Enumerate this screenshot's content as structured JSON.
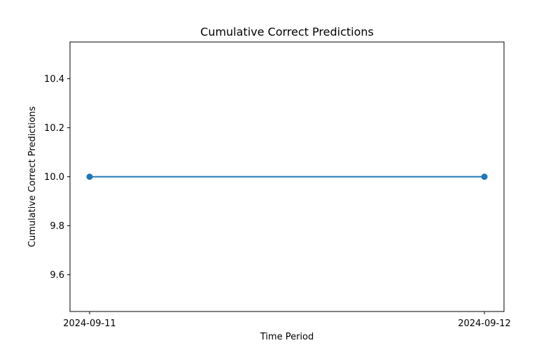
{
  "chart_data": {
    "type": "line",
    "title": "Cumulative Correct Predictions",
    "xlabel": "Time Period",
    "ylabel": "Cumulative Correct Predictions",
    "categories": [
      "2024-09-11",
      "2024-09-12"
    ],
    "series": [
      {
        "values": [
          10.0,
          10.0
        ],
        "color": "#1f77b4",
        "marker": "circle"
      }
    ],
    "ylim": [
      9.45,
      10.55
    ],
    "yticks": [
      9.6,
      9.8,
      10.0,
      10.2,
      10.4
    ],
    "ytick_labels": [
      "9.6",
      "9.8",
      "10.0",
      "10.2",
      "10.4"
    ],
    "grid": false,
    "legend": "none"
  }
}
